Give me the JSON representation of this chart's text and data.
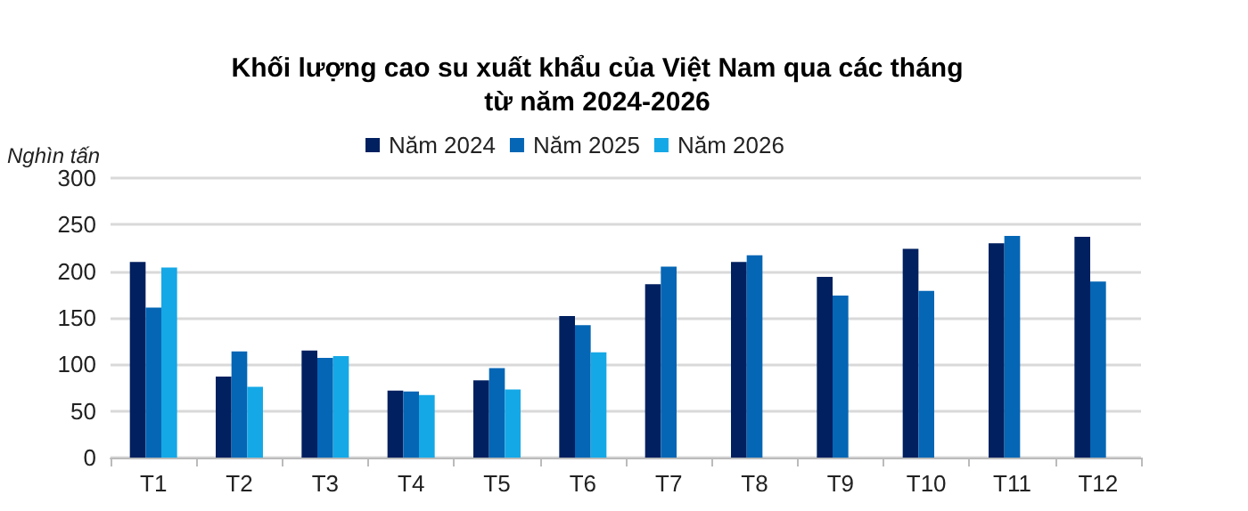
{
  "chart_data": {
    "type": "bar",
    "title": "Khối lượng cao su xuất khẩu của Việt Nam qua các tháng\ntừ năm 2024-2026",
    "ylabel": "Nghìn tấn",
    "categories": [
      "T1",
      "T2",
      "T3",
      "T4",
      "T5",
      "T6",
      "T7",
      "T8",
      "T9",
      "T10",
      "T11",
      "T12"
    ],
    "series": [
      {
        "name": "Năm 2024",
        "color": "#002060",
        "values": [
          210,
          87,
          115,
          72,
          83,
          152,
          186,
          210,
          194,
          224,
          230,
          237
        ]
      },
      {
        "name": "Năm 2025",
        "color": "#0566b5",
        "values": [
          161,
          114,
          107,
          71,
          96,
          142,
          205,
          217,
          174,
          179,
          238,
          189
        ]
      },
      {
        "name": "Năm 2026",
        "color": "#15a8e6",
        "values": [
          204,
          76,
          109,
          67,
          73,
          113,
          null,
          null,
          null,
          null,
          null,
          null
        ]
      }
    ],
    "ylim": [
      0,
      300
    ],
    "yticks": [
      0,
      50,
      100,
      150,
      200,
      250,
      300
    ],
    "grid": "y",
    "legend": "top"
  }
}
